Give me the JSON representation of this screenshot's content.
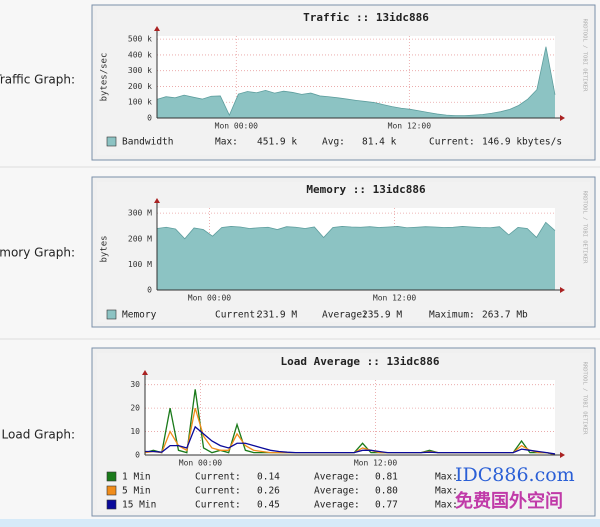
{
  "rows": [
    {
      "label": "Traffic Graph:"
    },
    {
      "label": "emory Graph:"
    },
    {
      "label": "Load Graph:"
    }
  ],
  "chart_data": [
    {
      "type": "area",
      "title": "Traffic :: 13idc886",
      "ylabel": "bytes/sec",
      "xlim": [
        -5.5,
        22.1
      ],
      "xticks": [
        {
          "value": 0,
          "label": "Mon 00:00"
        },
        {
          "value": 12,
          "label": "Mon 12:00"
        }
      ],
      "ylim": [
        0,
        520
      ],
      "yticks": [
        0,
        {
          "value": 100,
          "label": "100 k"
        },
        {
          "value": 200,
          "label": "200 k"
        },
        {
          "value": 300,
          "label": "300 k"
        },
        {
          "value": 400,
          "label": "400 k"
        },
        {
          "value": 500,
          "label": "500 k"
        }
      ],
      "grid": true,
      "series": [
        {
          "name": "Bandwidth",
          "color": "#8cc3c3",
          "values": [
            118,
            135,
            128,
            145,
            132,
            120,
            138,
            140,
            18,
            152,
            168,
            160,
            175,
            158,
            170,
            162,
            150,
            158,
            140,
            135,
            128,
            120,
            112,
            105,
            98,
            85,
            72,
            62,
            55,
            45,
            35,
            25,
            18,
            15,
            15,
            18,
            22,
            30,
            40,
            55,
            80,
            120,
            180,
            452,
            147
          ],
          "stats": [
            "Max:",
            "451.9 k",
            "Avg:",
            "81.4 k",
            "Current:",
            "146.9 kbytes/s"
          ]
        }
      ]
    },
    {
      "type": "area",
      "title": "Memory :: 13idc886",
      "ylabel": "bytes",
      "xlim": [
        -3.4,
        22.4
      ],
      "xticks": [
        {
          "value": 0,
          "label": "Mon 00:00"
        },
        {
          "value": 12,
          "label": "Mon 12:00"
        }
      ],
      "ylim": [
        0,
        320
      ],
      "yticks": [
        0,
        {
          "value": 100,
          "label": "100 M"
        },
        {
          "value": 200,
          "label": "200 M"
        },
        {
          "value": 300,
          "label": "300 M"
        }
      ],
      "grid": true,
      "series": [
        {
          "name": "Memory",
          "color": "#8cc3c3",
          "values": [
            240,
            245,
            238,
            200,
            242,
            236,
            210,
            244,
            248,
            246,
            240,
            243,
            245,
            236,
            247,
            245,
            240,
            246,
            205,
            244,
            248,
            246,
            245,
            247,
            244,
            246,
            248,
            243,
            245,
            247,
            246,
            244,
            245,
            248,
            246,
            244,
            243,
            247,
            215,
            244,
            240,
            205,
            264,
            232
          ],
          "stats": [
            "Current:",
            "231.9 M",
            "Average:",
            "235.9 M",
            "Maximum:",
            "263.7 Mb"
          ]
        }
      ]
    },
    {
      "type": "line",
      "title": "Load Average :: 13idc886",
      "xlim": [
        -3.8,
        24.3
      ],
      "xticks": [
        {
          "value": 0,
          "label": "Mon 00:00"
        },
        {
          "value": 12,
          "label": "Mon 12:00"
        }
      ],
      "ylim": [
        0,
        32
      ],
      "yticks": [
        0,
        10,
        20,
        30
      ],
      "grid": true,
      "series": [
        {
          "name": "1 Min",
          "color": "#1a7a1a",
          "values": [
            1,
            2,
            1,
            20,
            2,
            1,
            28,
            3,
            1,
            2,
            1,
            13,
            2,
            1,
            1,
            1,
            1,
            1,
            1,
            1,
            1,
            1,
            1,
            1,
            1,
            1,
            5,
            1,
            1,
            1,
            1,
            1,
            1,
            1,
            2,
            1,
            1,
            1,
            1,
            1,
            1,
            1,
            1,
            1,
            1,
            6,
            1,
            1,
            1,
            0.14
          ],
          "stats": [
            "Current:",
            "0.14",
            "Average:",
            "0.81",
            "Max:"
          ]
        },
        {
          "name": "5 Min",
          "color": "#f08c1a",
          "values": [
            1,
            1.5,
            1,
            10,
            4,
            2,
            20,
            8,
            3,
            2,
            2,
            9,
            4,
            2,
            1.5,
            1,
            1,
            1,
            1,
            1,
            1,
            1,
            1,
            1,
            1,
            1,
            3,
            2,
            1,
            1,
            1,
            1,
            1,
            1,
            1.5,
            1,
            1,
            1,
            1,
            1,
            1,
            1,
            1,
            1,
            1,
            4,
            2,
            1,
            1,
            0.26
          ],
          "stats": [
            "Current:",
            "0.26",
            "Average:",
            "0.80",
            "Max:"
          ]
        },
        {
          "name": "15 Min",
          "color": "#0a0a9a",
          "values": [
            1.5,
            1.5,
            1.2,
            4,
            4,
            3,
            12,
            9,
            6,
            4,
            3,
            5,
            5,
            4,
            3,
            2,
            1.5,
            1.2,
            1,
            1,
            1,
            1,
            1,
            1,
            1,
            1,
            2,
            2,
            1.5,
            1,
            1,
            1,
            1,
            1,
            1.2,
            1,
            1,
            1,
            1,
            1,
            1,
            1,
            1,
            1,
            1,
            2.5,
            2,
            1.5,
            1,
            0.45
          ],
          "stats": [
            "Current:",
            "0.45",
            "Average:",
            "0.77",
            "Max:"
          ]
        }
      ]
    }
  ],
  "watermark": {
    "text": "IDC886.com",
    "subtext": "免费国外空间"
  },
  "rrd_credit": "RRDTOOL / TOBI OETIKER"
}
